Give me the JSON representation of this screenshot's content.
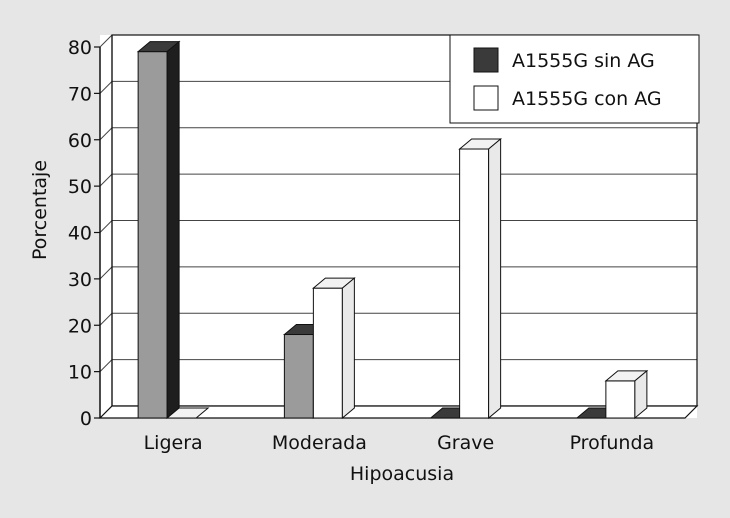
{
  "chart_data": {
    "type": "bar",
    "title": "",
    "xlabel": "Hipoacusia",
    "ylabel": "Porcentaje",
    "categories": [
      "Ligera",
      "Moderada",
      "Grave",
      "Profunda"
    ],
    "series": [
      {
        "name": "A1555G sin AG",
        "values": [
          79,
          18,
          0,
          0
        ],
        "color": "#9b9b9b"
      },
      {
        "name": "A1555G con AG",
        "values": [
          0,
          28,
          58,
          8
        ],
        "color": "#ffffff"
      }
    ],
    "ylim": [
      0,
      80
    ],
    "yticks": [
      0,
      10,
      20,
      30,
      40,
      50,
      60,
      70,
      80
    ],
    "grid": true,
    "legend_position": "top-right",
    "style": "3d-bars"
  }
}
